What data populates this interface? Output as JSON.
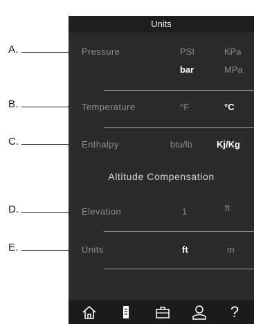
{
  "header": {
    "title": "Units"
  },
  "callouts": [
    "A.",
    "B.",
    "C.",
    "D.",
    "E."
  ],
  "pressure": {
    "label": "Pressure",
    "options": [
      "PSI",
      "KPa",
      "bar",
      "MPa"
    ],
    "selected": "bar"
  },
  "temperature": {
    "label": "Temperature",
    "options": [
      "°F",
      "°C"
    ],
    "selected": "°C"
  },
  "enthalpy": {
    "label": "Enthalpy",
    "options": [
      "btu/lb",
      "Kj/Kg"
    ],
    "selected": "Kj/Kg"
  },
  "altitude": {
    "title": "Altitude Compensation",
    "elevation": {
      "label": "Elevation",
      "value": "1",
      "unit": "ft"
    },
    "units": {
      "label": "Units",
      "options": [
        "ft",
        "m"
      ],
      "selected": "ft"
    }
  },
  "nav": {
    "icons": [
      "home-icon",
      "file-icon",
      "toolbox-icon",
      "user-icon",
      "help-icon"
    ],
    "help_glyph": "?"
  },
  "colors": {
    "panel": "#2b2b2b",
    "header": "#1f1f1f",
    "navbar": "#1b1b1b",
    "selected": "#ffffff",
    "unselected": "#8a8a8a"
  }
}
